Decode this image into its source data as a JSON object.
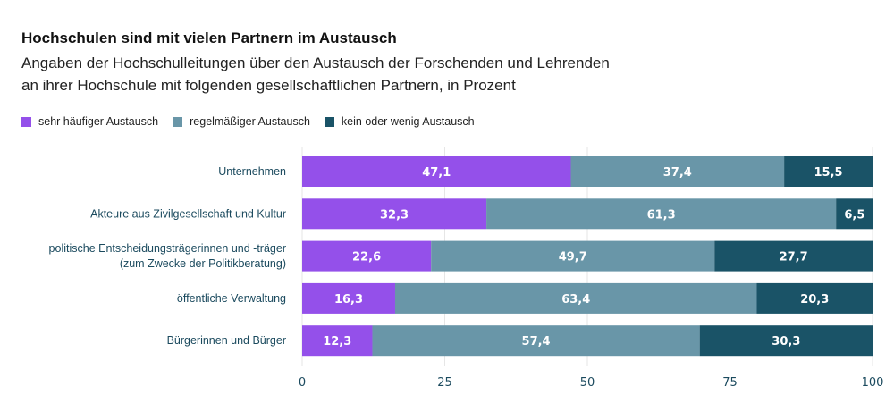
{
  "chart_data": {
    "type": "bar",
    "orientation": "horizontal",
    "stacked": true,
    "title": "Hochschulen sind mit vielen Partnern im Austausch",
    "subtitle_lines": [
      "Angaben der Hochschulleitungen über den Austausch der Forschenden und Lehrenden",
      "an ihrer Hochschule mit folgenden gesellschaftlichen Partnern, in Prozent"
    ],
    "categories": [
      [
        "Unternehmen"
      ],
      [
        "Akteure aus Zivilgesellschaft und Kultur"
      ],
      [
        "politische Entscheidungsträgerinnen und -träger",
        "(zum Zwecke der Politikberatung)"
      ],
      [
        "öffentliche Verwaltung"
      ],
      [
        "Bürgerinnen und Bürger"
      ]
    ],
    "series": [
      {
        "name": "sehr häufiger Austausch",
        "color": "#9450ea",
        "values": [
          47.1,
          32.3,
          22.6,
          16.3,
          12.3
        ],
        "labels": [
          "47,1",
          "32,3",
          "22,6",
          "16,3",
          "12,3"
        ]
      },
      {
        "name": "regelmäßiger Austausch",
        "color": "#6996a8",
        "values": [
          37.4,
          61.3,
          49.7,
          63.4,
          57.4
        ],
        "labels": [
          "37,4",
          "61,3",
          "49,7",
          "63,4",
          "57,4"
        ]
      },
      {
        "name": "kein oder wenig Austausch",
        "color": "#1a5367",
        "values": [
          15.5,
          6.5,
          27.7,
          20.3,
          30.3
        ],
        "labels": [
          "15,5",
          "6,5",
          "27,7",
          "20,3",
          "30,3"
        ]
      }
    ],
    "xlim": [
      0,
      100
    ],
    "xticks": [
      0,
      25,
      50,
      75,
      100
    ],
    "xtick_labels": [
      "0",
      "25",
      "50",
      "75",
      "100"
    ],
    "grid": true,
    "legend": "top-left",
    "xlabel": "",
    "ylabel": ""
  }
}
